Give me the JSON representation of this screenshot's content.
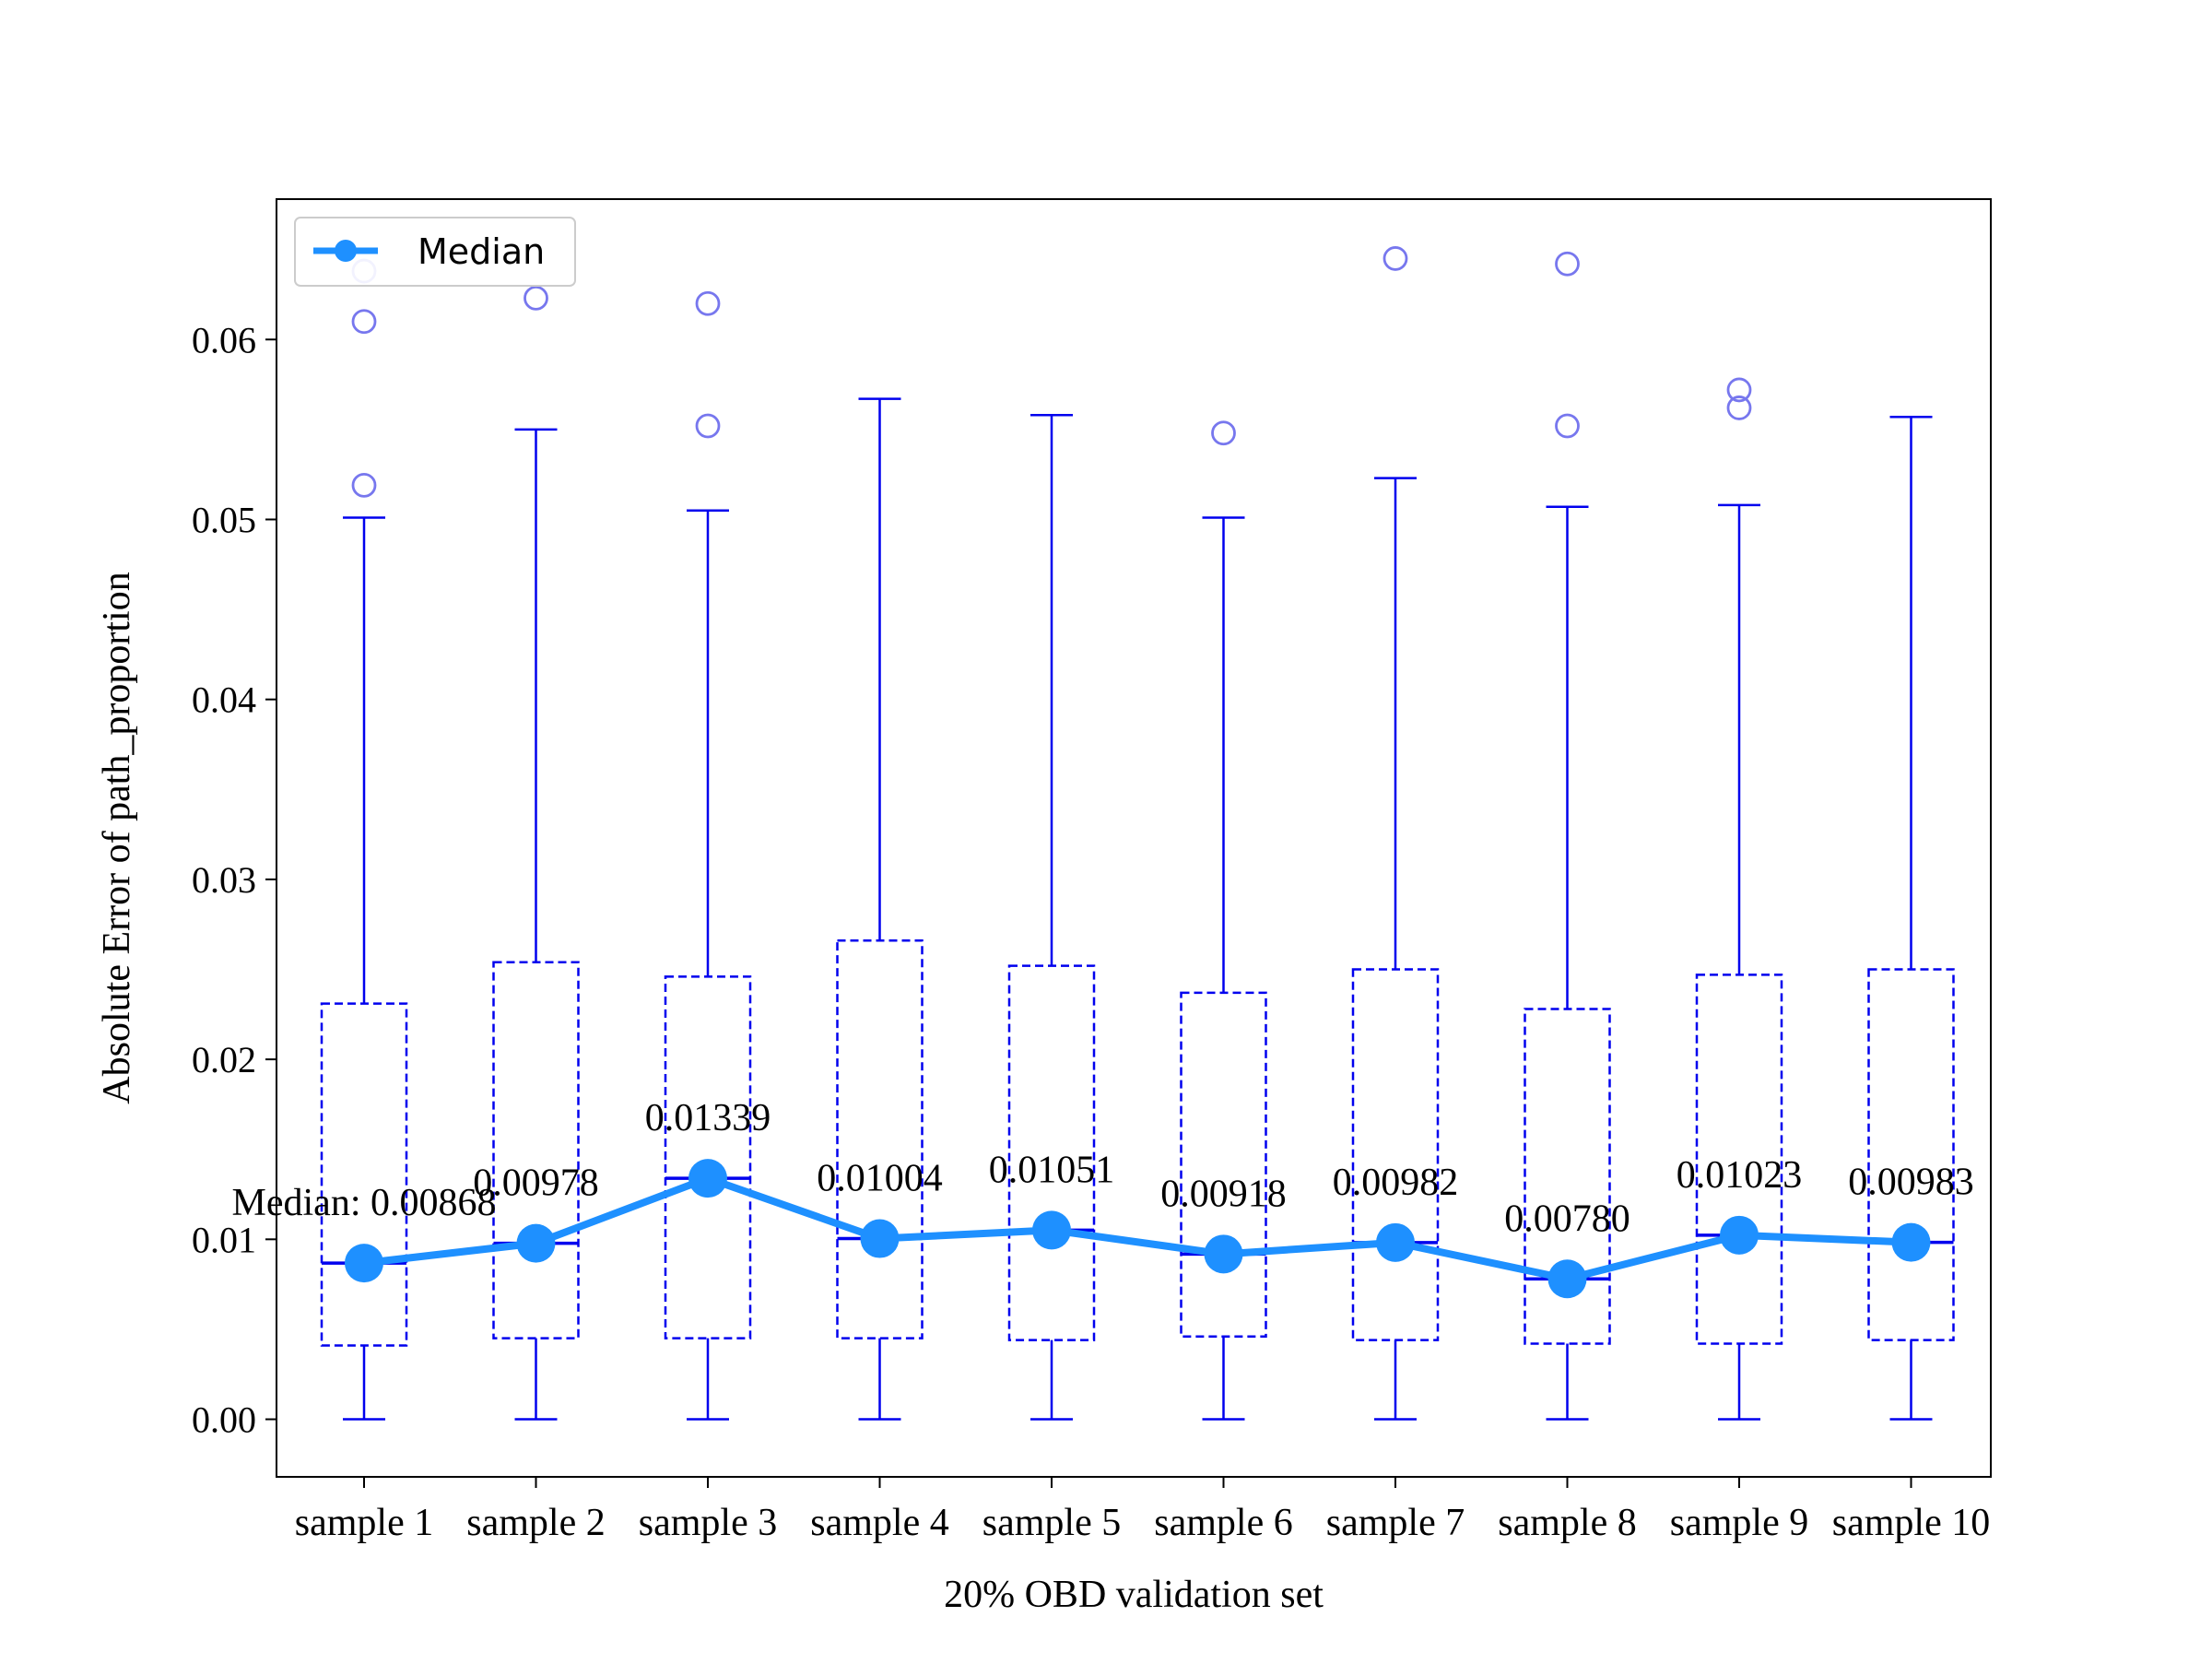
{
  "chart_data": {
    "type": "box",
    "xlabel": "20% OBD validation set",
    "ylabel": "Absolute Error of path_proportion",
    "ylim": [
      -0.0032,
      0.0678
    ],
    "yticks": [
      0.0,
      0.01,
      0.02,
      0.03,
      0.04,
      0.05,
      0.06
    ],
    "ytick_labels": [
      "0.00",
      "0.01",
      "0.02",
      "0.03",
      "0.04",
      "0.05",
      "0.06"
    ],
    "categories": [
      "sample 1",
      "sample 2",
      "sample 3",
      "sample 4",
      "sample 5",
      "sample 6",
      "sample 7",
      "sample 8",
      "sample 9",
      "sample 10"
    ],
    "boxes": [
      {
        "whisker_low": 0.0,
        "q1": 0.0041,
        "median": 0.00868,
        "q3": 0.0231,
        "whisker_high": 0.0501,
        "outliers": [
          0.0519,
          0.061,
          0.0638
        ]
      },
      {
        "whisker_low": 0.0,
        "q1": 0.0045,
        "median": 0.00978,
        "q3": 0.0254,
        "whisker_high": 0.055,
        "outliers": [
          0.0623
        ]
      },
      {
        "whisker_low": 0.0,
        "q1": 0.0045,
        "median": 0.01339,
        "q3": 0.0246,
        "whisker_high": 0.0505,
        "outliers": [
          0.0552,
          0.062
        ]
      },
      {
        "whisker_low": 0.0,
        "q1": 0.0045,
        "median": 0.01004,
        "q3": 0.0266,
        "whisker_high": 0.0567,
        "outliers": []
      },
      {
        "whisker_low": 0.0,
        "q1": 0.0044,
        "median": 0.01051,
        "q3": 0.0252,
        "whisker_high": 0.0558,
        "outliers": []
      },
      {
        "whisker_low": 0.0,
        "q1": 0.0046,
        "median": 0.00918,
        "q3": 0.0237,
        "whisker_high": 0.0501,
        "outliers": [
          0.0548
        ]
      },
      {
        "whisker_low": 0.0,
        "q1": 0.0044,
        "median": 0.00982,
        "q3": 0.025,
        "whisker_high": 0.0523,
        "outliers": [
          0.0645
        ]
      },
      {
        "whisker_low": 0.0,
        "q1": 0.0042,
        "median": 0.0078,
        "q3": 0.0228,
        "whisker_high": 0.0507,
        "outliers": [
          0.0552,
          0.0642
        ]
      },
      {
        "whisker_low": 0.0,
        "q1": 0.0042,
        "median": 0.01023,
        "q3": 0.0247,
        "whisker_high": 0.0508,
        "outliers": [
          0.0562,
          0.0572
        ]
      },
      {
        "whisker_low": 0.0,
        "q1": 0.0044,
        "median": 0.00983,
        "q3": 0.025,
        "whisker_high": 0.0557,
        "outliers": []
      }
    ],
    "median_series": {
      "name": "Median",
      "values": [
        0.00868,
        0.00978,
        0.01339,
        0.01004,
        0.01051,
        0.00918,
        0.00982,
        0.0078,
        0.01023,
        0.00983
      ],
      "labels": [
        "Median: 0.00868",
        "0.00978",
        "0.01339",
        "0.01004",
        "0.01051",
        "0.00918",
        "0.00982",
        "0.00780",
        "0.01023",
        "0.00983"
      ],
      "color": "#1e90ff"
    },
    "legend": {
      "entries": [
        "Median"
      ],
      "position": "upper-left"
    },
    "colors": {
      "box": "#0000ee",
      "outlier": "#7777ee",
      "median_line": "#1e90ff"
    },
    "grid": false
  }
}
